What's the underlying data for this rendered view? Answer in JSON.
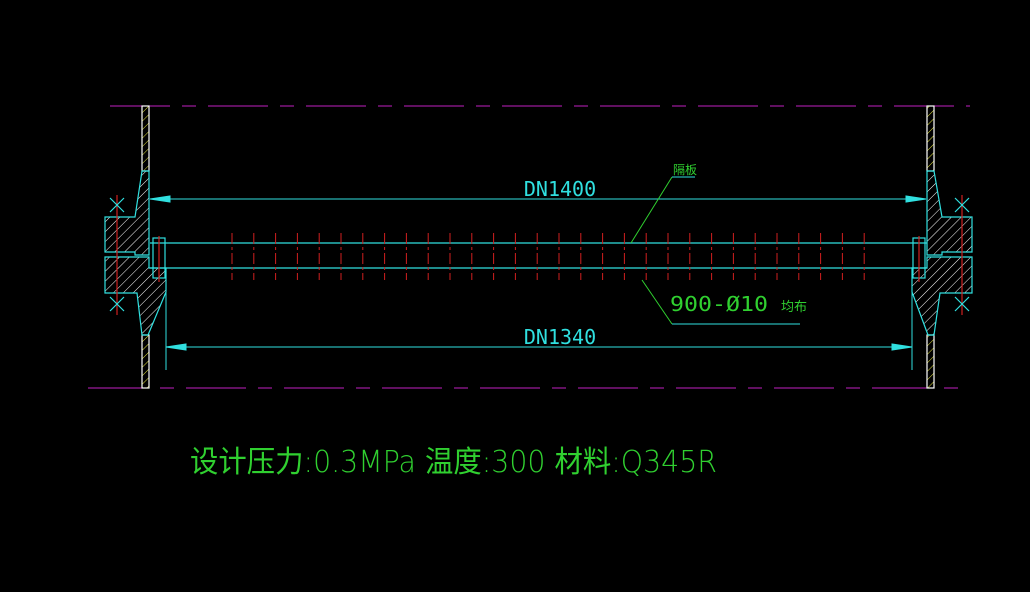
{
  "drawing": {
    "dim_outer": "DN1400",
    "dim_inner": "DN1340",
    "label_baffle": "隔板",
    "label_holes": "900-Ø10",
    "label_holes_note": "均布",
    "spec_line": "设计压力:0.3MPa 温度:300 材料:Q345R"
  },
  "colors": {
    "background": "#000000",
    "centerline": "#c020c0",
    "outline": "#30e0e0",
    "hole_centerline": "#d02020",
    "text": "#30d030",
    "hatch": "#ffffff",
    "shell_hatch": "#e0e040"
  }
}
